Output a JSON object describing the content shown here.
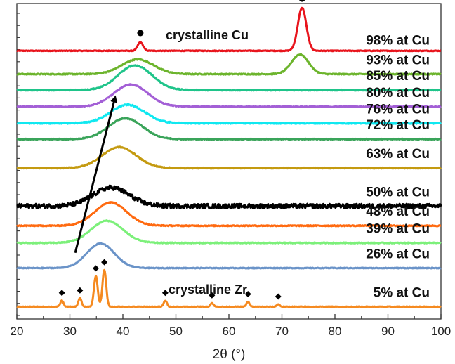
{
  "chart_data": {
    "type": "line",
    "xlabel": "2θ (°)",
    "xlim": [
      20,
      100
    ],
    "x_ticks": [
      20,
      30,
      40,
      50,
      60,
      70,
      80,
      90,
      100
    ],
    "grid": false,
    "y_tick_labels": false,
    "series": [
      {
        "name": "98% at Cu",
        "color": "#e8141c",
        "offset": 0.965,
        "peaks": [
          {
            "center": 73.8,
            "height": 0.35,
            "width": 0.8
          },
          {
            "center": 43.3,
            "height": 0.07,
            "width": 0.5
          }
        ],
        "noise": 0.003
      },
      {
        "name": "93% at Cu",
        "color": "#6cb42c",
        "offset": 0.775,
        "peaks": [
          {
            "center": 42.8,
            "height": 0.12,
            "width": 3.0
          },
          {
            "center": 73.4,
            "height": 0.16,
            "width": 1.6
          }
        ],
        "noise": 0.004
      },
      {
        "name": "85% at Cu",
        "color": "#1fc48a",
        "offset": 0.645,
        "peaks": [
          {
            "center": 42.3,
            "height": 0.2,
            "width": 3.2
          }
        ],
        "noise": 0.004
      },
      {
        "name": "80% at Cu",
        "color": "#a35fd6",
        "offset": 0.51,
        "peaks": [
          {
            "center": 41.5,
            "height": 0.18,
            "width": 3.2
          }
        ],
        "noise": 0.004
      },
      {
        "name": "76% at Cu",
        "color": "#10e8f0",
        "offset": 0.375,
        "peaks": [
          {
            "center": 40.9,
            "height": 0.15,
            "width": 3.2
          }
        ],
        "noise": 0.005
      },
      {
        "name": "72% at Cu",
        "color": "#3aa45a",
        "offset": 0.245,
        "peaks": [
          {
            "center": 40.5,
            "height": 0.17,
            "width": 3.2
          }
        ],
        "noise": 0.004
      },
      {
        "name": "63% at Cu",
        "color": "#c49a10",
        "offset": 0.01,
        "peaks": [
          {
            "center": 39.3,
            "height": 0.17,
            "width": 3.2
          }
        ],
        "noise": 0.004
      },
      {
        "name": "50% at Cu",
        "color": "#000000",
        "offset": -0.3,
        "peaks": [
          {
            "center": 37.8,
            "height": 0.15,
            "width": 3.4
          }
        ],
        "noise": 0.018
      },
      {
        "name": "48% at Cu",
        "color": "#ff6a10",
        "offset": -0.46,
        "peaks": [
          {
            "center": 37.7,
            "height": 0.19,
            "width": 3.0
          }
        ],
        "noise": 0.004
      },
      {
        "name": "39% at Cu",
        "color": "#7cf07a",
        "offset": -0.6,
        "peaks": [
          {
            "center": 37.0,
            "height": 0.18,
            "width": 3.0
          }
        ],
        "noise": 0.004
      },
      {
        "name": "26% at Cu",
        "color": "#6a93c8",
        "offset": -0.805,
        "peaks": [
          {
            "center": 35.8,
            "height": 0.2,
            "width": 2.6
          }
        ],
        "noise": 0.003
      },
      {
        "name": "5% at Cu",
        "color": "#f58a20",
        "offset": -1.12,
        "peaks": [
          {
            "center": 28.5,
            "height": 0.05,
            "width": 0.3
          },
          {
            "center": 31.9,
            "height": 0.07,
            "width": 0.3
          },
          {
            "center": 34.9,
            "height": 0.25,
            "width": 0.35
          },
          {
            "center": 36.5,
            "height": 0.3,
            "width": 0.35
          },
          {
            "center": 48.0,
            "height": 0.05,
            "width": 0.3
          },
          {
            "center": 56.8,
            "height": 0.03,
            "width": 0.3
          },
          {
            "center": 63.6,
            "height": 0.04,
            "width": 0.3
          },
          {
            "center": 69.3,
            "height": 0.02,
            "width": 0.3
          }
        ],
        "noise": 0.003
      }
    ],
    "annotations": {
      "crystalline_cu_label": "crystalline Cu",
      "crystalline_zr_label": "crystalline Zr",
      "cu_peak_markers": [
        43.3,
        73.8
      ],
      "zr_peak_markers": [
        28.5,
        31.9,
        34.9,
        36.5,
        48.0,
        56.8,
        63.6,
        69.3
      ],
      "arrow": {
        "from": [
          31,
          -0.68
        ],
        "to": [
          38.5,
          0.58
        ]
      }
    }
  }
}
